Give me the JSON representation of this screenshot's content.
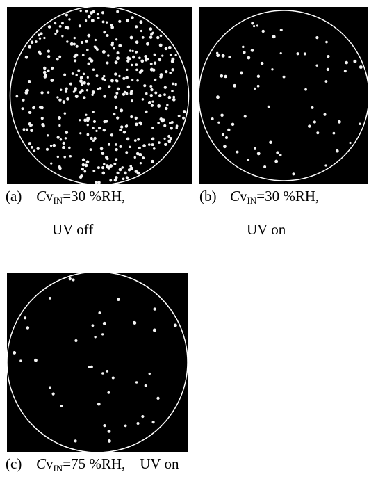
{
  "panels": [
    {
      "label": "(a)",
      "symbol_italic": "C",
      "symbol": "v",
      "subscript": "IN",
      "condition": "=30 %RH,",
      "uv": "UV off"
    },
    {
      "label": "(b)",
      "symbol_italic": "C",
      "symbol": "v",
      "subscript": "IN",
      "condition": "=30 %RH,",
      "uv": "UV on"
    },
    {
      "label": "(c)",
      "symbol_italic": "C",
      "symbol": "v",
      "subscript": "IN",
      "condition": "=75 %RH,",
      "uv": "UV on"
    }
  ]
}
